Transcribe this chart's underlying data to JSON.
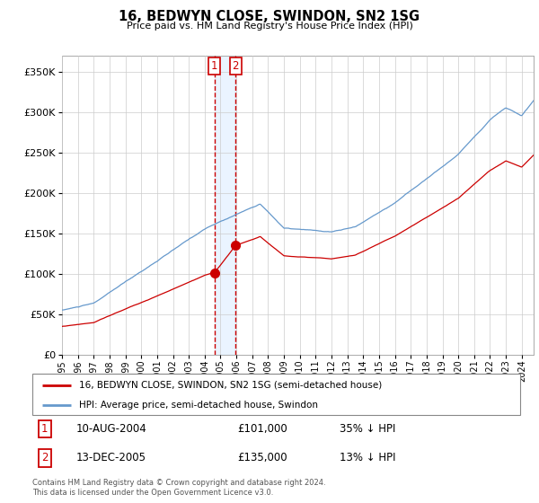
{
  "title": "16, BEDWYN CLOSE, SWINDON, SN2 1SG",
  "subtitle": "Price paid vs. HM Land Registry's House Price Index (HPI)",
  "legend_label_red": "16, BEDWYN CLOSE, SWINDON, SN2 1SG (semi-detached house)",
  "legend_label_blue": "HPI: Average price, semi-detached house, Swindon",
  "footer": "Contains HM Land Registry data © Crown copyright and database right 2024.\nThis data is licensed under the Open Government Licence v3.0.",
  "transactions": [
    {
      "label": "1",
      "date": "10-AUG-2004",
      "price": "£101,000",
      "pct": "35% ↓ HPI"
    },
    {
      "label": "2",
      "date": "13-DEC-2005",
      "price": "£135,000",
      "pct": "13% ↓ HPI"
    }
  ],
  "transaction_dates_decimal": [
    2004.608,
    2005.952
  ],
  "transaction_prices": [
    101000,
    135000
  ],
  "ylim": [
    0,
    370000
  ],
  "yticks": [
    0,
    50000,
    100000,
    150000,
    200000,
    250000,
    300000,
    350000
  ],
  "color_red": "#cc0000",
  "color_blue": "#6699cc",
  "color_shade": "#ddeeff",
  "color_dashed": "#cc0000",
  "background_color": "#ffffff",
  "grid_color": "#cccccc",
  "xlim_start": 1995,
  "xlim_end": 2024.75
}
